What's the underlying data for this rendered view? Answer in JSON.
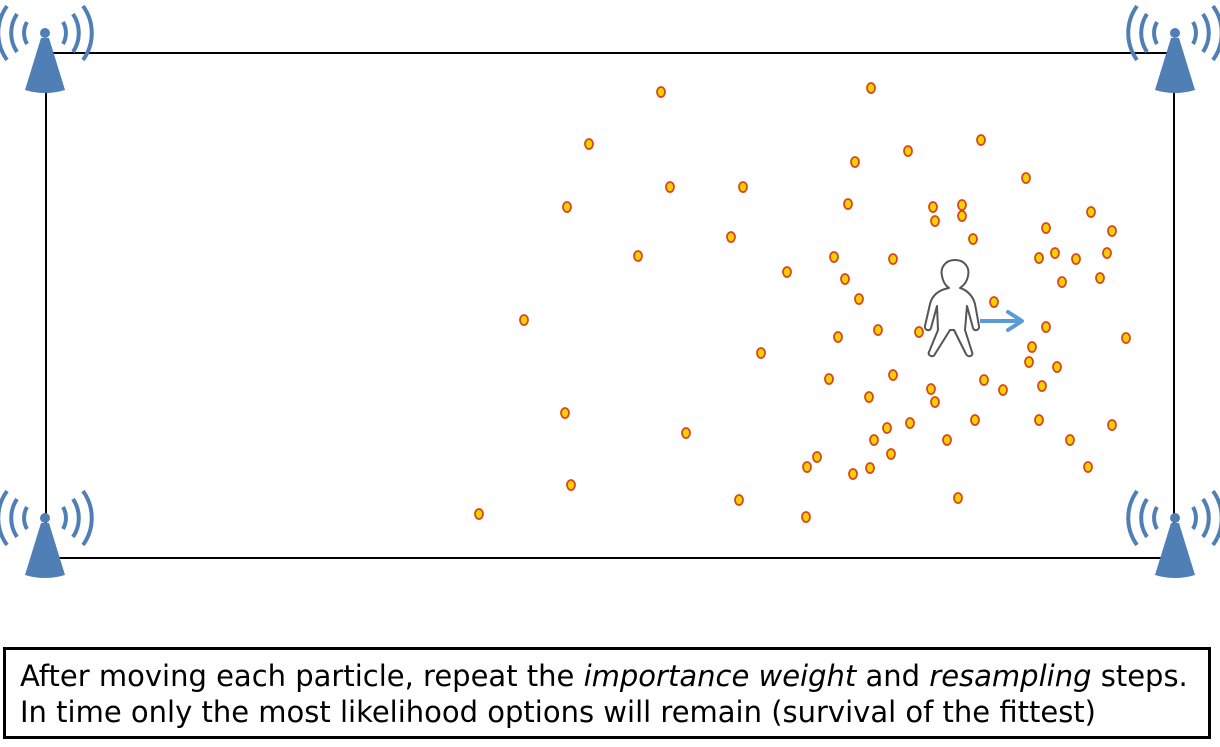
{
  "colors": {
    "room_border": "#000000",
    "tower": "#4f7fb5",
    "particle_fill": "#f6d000",
    "particle_stroke": "#d9481c",
    "arrow": "#5b9bd5",
    "person_stroke": "#555555"
  },
  "icons": [
    "antenna-icon",
    "person-icon",
    "arrow-right-icon"
  ],
  "caption": {
    "line1_part1": "After moving each particle, repeat the ",
    "line1_em1": "importance weight",
    "line1_part2": " and ",
    "line1_em2": "resampling",
    "line1_part3": " steps.",
    "line2": "In time only the most likelihood options will remain (survival of the fittest)"
  }
}
